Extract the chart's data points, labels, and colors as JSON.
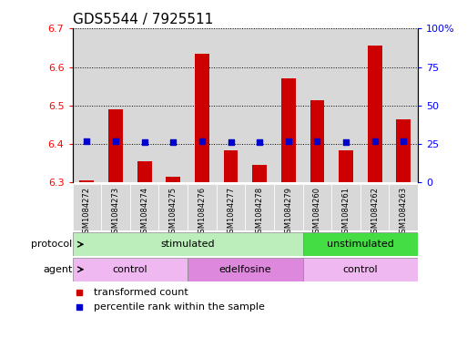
{
  "title": "GDS5544 / 7925511",
  "samples": [
    "GSM1084272",
    "GSM1084273",
    "GSM1084274",
    "GSM1084275",
    "GSM1084276",
    "GSM1084277",
    "GSM1084278",
    "GSM1084279",
    "GSM1084260",
    "GSM1084261",
    "GSM1084262",
    "GSM1084263"
  ],
  "transformed_counts": [
    6.305,
    6.49,
    6.355,
    6.315,
    6.635,
    6.385,
    6.345,
    6.57,
    6.515,
    6.385,
    6.655,
    6.465
  ],
  "percentile_ranks": [
    27,
    27,
    26,
    26,
    27,
    26,
    26,
    27,
    27,
    26,
    27,
    27
  ],
  "ylim_left": [
    6.3,
    6.7
  ],
  "ylim_right": [
    0,
    100
  ],
  "yticks_left": [
    6.3,
    6.4,
    6.5,
    6.6,
    6.7
  ],
  "yticks_right": [
    0,
    25,
    50,
    75,
    100
  ],
  "bar_color": "#cc0000",
  "dot_color": "#0000cc",
  "bar_bottom": 6.3,
  "protocol_groups": [
    {
      "label": "stimulated",
      "start": 0,
      "end": 8,
      "color": "#bbeebb"
    },
    {
      "label": "unstimulated",
      "start": 8,
      "end": 12,
      "color": "#44dd44"
    }
  ],
  "agent_groups": [
    {
      "label": "control",
      "start": 0,
      "end": 4,
      "color": "#f0b8f0"
    },
    {
      "label": "edelfosine",
      "start": 4,
      "end": 8,
      "color": "#dd88dd"
    },
    {
      "label": "control",
      "start": 8,
      "end": 12,
      "color": "#f0b8f0"
    }
  ],
  "legend_items": [
    {
      "label": "transformed count",
      "color": "#cc0000"
    },
    {
      "label": "percentile rank within the sample",
      "color": "#0000cc"
    }
  ],
  "bar_width": 0.5,
  "title_fontsize": 11,
  "tick_fontsize": 8,
  "col_bg": "#d8d8d8"
}
